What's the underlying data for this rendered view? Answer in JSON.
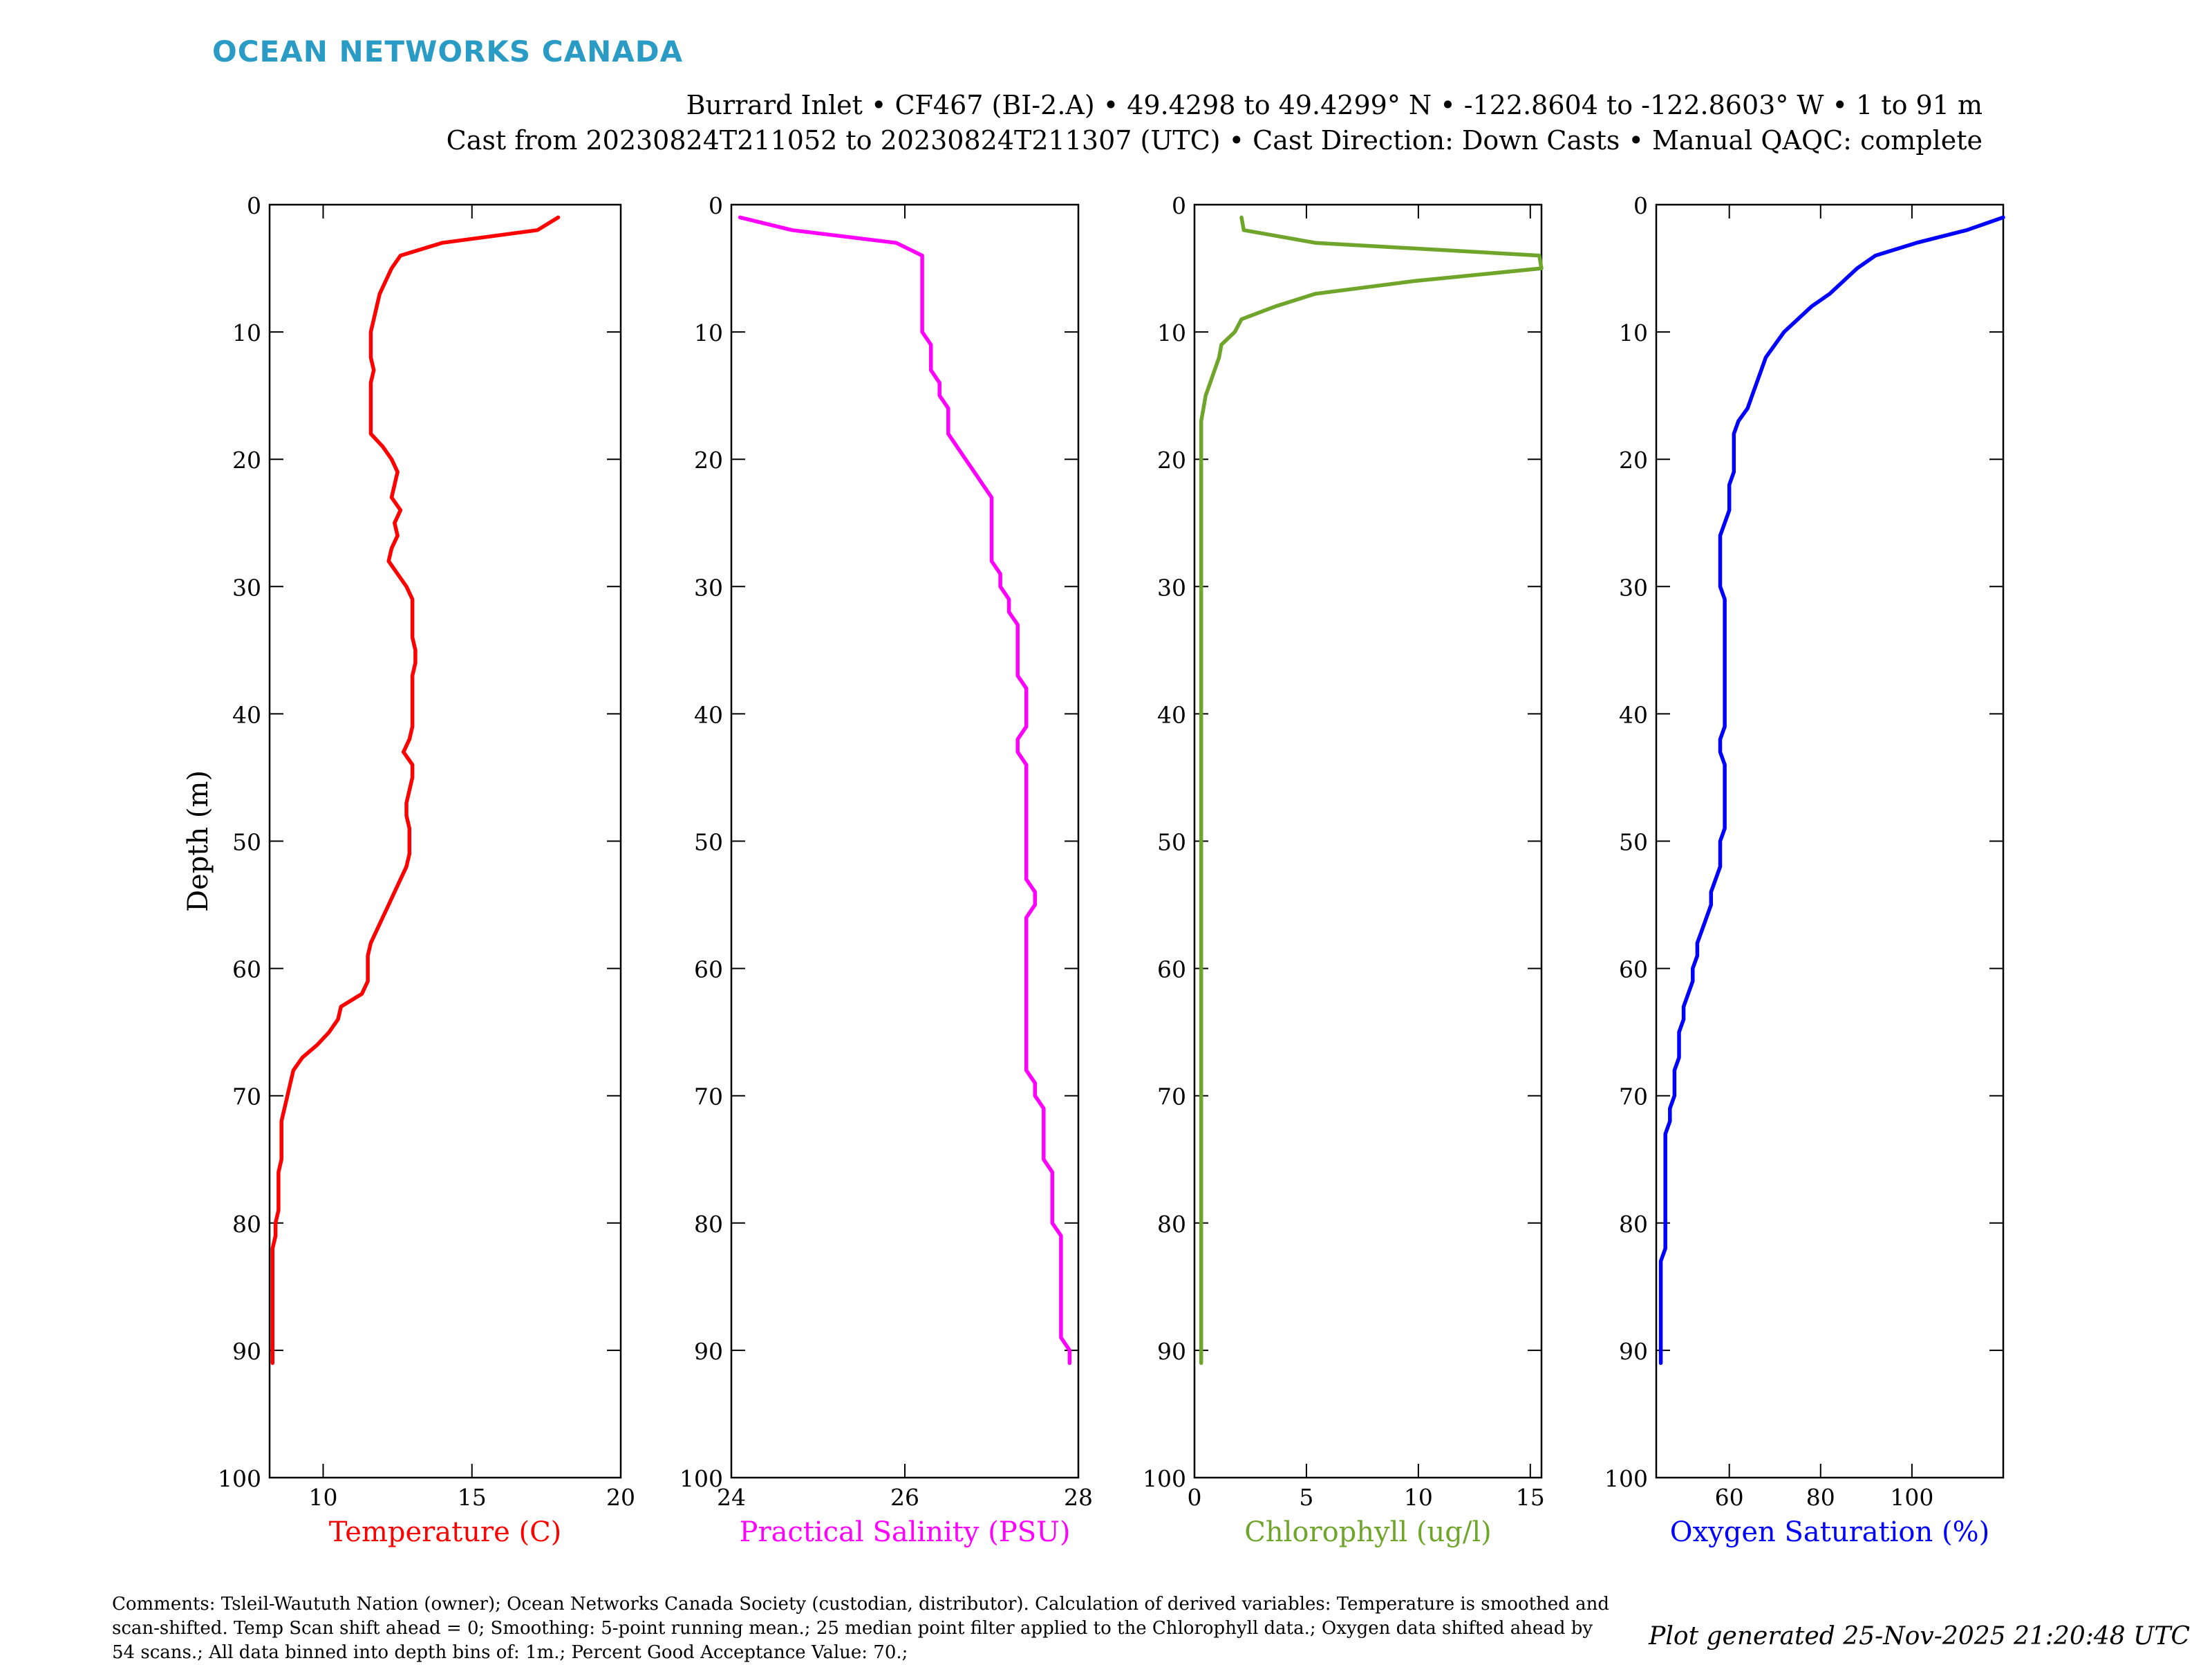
{
  "brand": "OCEAN NETWORKS CANADA",
  "title_line1": "Burrard Inlet • CF467 (BI-2.A) • 49.4298 to 49.4299° N • -122.8604 to -122.8603° W • 1 to 91 m",
  "title_line2": "Cast from 20230824T211052 to 20230824T211307 (UTC) • Cast Direction: Down Casts • Manual QAQC: complete",
  "comments": "Comments: Tsleil-Waututh Nation (owner); Ocean Networks Canada Society (custodian, distributor). Calculation of derived variables: Temperature is smoothed and scan-shifted. Temp Scan shift ahead = 0; Smoothing: 5-point running mean.; 25 median point filter applied to the Chlorophyll data.; Oxygen data shifted ahead by 54 scans.; All data binned into depth bins of: 1m.; Percent Good Acceptance Value: 70.;",
  "generated": "Plot generated 25-Nov-2025 21:20:48 UTC",
  "chart_data": [
    {
      "type": "line",
      "xlabel": "Temperature (C)",
      "ylabel": "Depth (m)",
      "color": "#ff0000",
      "xlim": [
        8.2,
        20
      ],
      "ylim": [
        0,
        100
      ],
      "y_reversed": true,
      "xticks": [
        10,
        15,
        20
      ],
      "yticks": [
        0,
        10,
        20,
        30,
        40,
        50,
        60,
        70,
        80,
        90,
        100
      ],
      "series": [
        {
          "x": [
            17.9,
            17.2,
            14.0,
            12.6,
            12.3,
            12.1,
            11.9,
            11.8,
            11.7,
            11.6,
            11.6,
            11.6,
            11.7,
            11.6,
            11.6,
            11.6,
            11.6,
            11.6,
            12.0,
            12.3,
            12.5,
            12.4,
            12.3,
            12.6,
            12.4,
            12.5,
            12.3,
            12.2,
            12.5,
            12.8,
            13.0,
            13.0,
            13.0,
            13.0,
            13.1,
            13.1,
            13.0,
            13.0,
            13.0,
            13.0,
            13.0,
            12.9,
            12.7,
            13.0,
            13.0,
            12.9,
            12.8,
            12.8,
            12.9,
            12.9,
            12.9,
            12.8,
            12.6,
            12.4,
            12.2,
            12.0,
            11.8,
            11.6,
            11.5,
            11.5,
            11.5,
            11.3,
            10.6,
            10.5,
            10.2,
            9.8,
            9.3,
            9.0,
            8.9,
            8.8,
            8.7,
            8.6,
            8.6,
            8.6,
            8.6,
            8.5,
            8.5,
            8.5,
            8.5,
            8.4,
            8.4,
            8.3,
            8.3,
            8.3,
            8.3,
            8.3,
            8.3,
            8.3,
            8.3,
            8.3,
            8.3
          ],
          "depth": [
            1,
            2,
            3,
            4,
            5,
            6,
            7,
            8,
            9,
            10,
            11,
            12,
            13,
            14,
            15,
            16,
            17,
            18,
            19,
            20,
            21,
            22,
            23,
            24,
            25,
            26,
            27,
            28,
            29,
            30,
            31,
            32,
            33,
            34,
            35,
            36,
            37,
            38,
            39,
            40,
            41,
            42,
            43,
            44,
            45,
            46,
            47,
            48,
            49,
            50,
            51,
            52,
            53,
            54,
            55,
            56,
            57,
            58,
            59,
            60,
            61,
            62,
            63,
            64,
            65,
            66,
            67,
            68,
            69,
            70,
            71,
            72,
            73,
            74,
            75,
            76,
            77,
            78,
            79,
            80,
            81,
            82,
            83,
            84,
            85,
            86,
            87,
            88,
            89,
            90,
            91
          ]
        }
      ]
    },
    {
      "type": "line",
      "xlabel": "Practical Salinity (PSU)",
      "ylabel": "",
      "color": "#ff00ff",
      "xlim": [
        24,
        28
      ],
      "ylim": [
        0,
        100
      ],
      "y_reversed": true,
      "xticks": [
        24,
        26,
        28
      ],
      "yticks": [
        0,
        10,
        20,
        30,
        40,
        50,
        60,
        70,
        80,
        90,
        100
      ],
      "series": [
        {
          "x": [
            24.1,
            24.7,
            25.9,
            26.2,
            26.2,
            26.2,
            26.2,
            26.2,
            26.2,
            26.2,
            26.3,
            26.3,
            26.3,
            26.4,
            26.4,
            26.5,
            26.5,
            26.5,
            26.6,
            26.7,
            26.8,
            26.9,
            27.0,
            27.0,
            27.0,
            27.0,
            27.0,
            27.0,
            27.1,
            27.1,
            27.2,
            27.2,
            27.3,
            27.3,
            27.3,
            27.3,
            27.3,
            27.4,
            27.4,
            27.4,
            27.4,
            27.3,
            27.3,
            27.4,
            27.4,
            27.4,
            27.4,
            27.4,
            27.4,
            27.4,
            27.4,
            27.4,
            27.4,
            27.5,
            27.5,
            27.4,
            27.4,
            27.4,
            27.4,
            27.4,
            27.4,
            27.4,
            27.4,
            27.4,
            27.4,
            27.4,
            27.4,
            27.4,
            27.5,
            27.5,
            27.6,
            27.6,
            27.6,
            27.6,
            27.6,
            27.7,
            27.7,
            27.7,
            27.7,
            27.7,
            27.8,
            27.8,
            27.8,
            27.8,
            27.8,
            27.8,
            27.8,
            27.8,
            27.8,
            27.9,
            27.9
          ],
          "depth": [
            1,
            2,
            3,
            4,
            5,
            6,
            7,
            8,
            9,
            10,
            11,
            12,
            13,
            14,
            15,
            16,
            17,
            18,
            19,
            20,
            21,
            22,
            23,
            24,
            25,
            26,
            27,
            28,
            29,
            30,
            31,
            32,
            33,
            34,
            35,
            36,
            37,
            38,
            39,
            40,
            41,
            42,
            43,
            44,
            45,
            46,
            47,
            48,
            49,
            50,
            51,
            52,
            53,
            54,
            55,
            56,
            57,
            58,
            59,
            60,
            61,
            62,
            63,
            64,
            65,
            66,
            67,
            68,
            69,
            70,
            71,
            72,
            73,
            74,
            75,
            76,
            77,
            78,
            79,
            80,
            81,
            82,
            83,
            84,
            85,
            86,
            87,
            88,
            89,
            90,
            91
          ]
        }
      ]
    },
    {
      "type": "line",
      "xlabel": "Chlorophyll (ug/l)",
      "ylabel": "",
      "color": "#6fa52a",
      "xlim": [
        0,
        15.5
      ],
      "ylim": [
        0,
        100
      ],
      "y_reversed": true,
      "xticks": [
        0,
        5,
        10,
        15
      ],
      "yticks": [
        0,
        10,
        20,
        30,
        40,
        50,
        60,
        70,
        80,
        90,
        100
      ],
      "series": [
        {
          "x": [
            2.1,
            2.2,
            5.4,
            15.4,
            15.5,
            9.8,
            5.4,
            3.6,
            2.1,
            1.8,
            1.2,
            1.1,
            0.9,
            0.7,
            0.5,
            0.4,
            0.3,
            0.3,
            0.3,
            0.3,
            0.3,
            0.3,
            0.3,
            0.3,
            0.3,
            0.3,
            0.3,
            0.3,
            0.3,
            0.3,
            0.3,
            0.3,
            0.3,
            0.3,
            0.3,
            0.3,
            0.3,
            0.3,
            0.3,
            0.3,
            0.3,
            0.3,
            0.3,
            0.3,
            0.3,
            0.3,
            0.3,
            0.3,
            0.3,
            0.3,
            0.3,
            0.3,
            0.3,
            0.3,
            0.3,
            0.3,
            0.3,
            0.3,
            0.3,
            0.3,
            0.3,
            0.3,
            0.3,
            0.3,
            0.3,
            0.3,
            0.3,
            0.3,
            0.3,
            0.3,
            0.3,
            0.3,
            0.3,
            0.3,
            0.3,
            0.3,
            0.3,
            0.3,
            0.3,
            0.3,
            0.3,
            0.3,
            0.3,
            0.3,
            0.3,
            0.3,
            0.3,
            0.3,
            0.3,
            0.3,
            0.3
          ],
          "depth": [
            1,
            2,
            3,
            4,
            5,
            6,
            7,
            8,
            9,
            10,
            11,
            12,
            13,
            14,
            15,
            16,
            17,
            18,
            19,
            20,
            21,
            22,
            23,
            24,
            25,
            26,
            27,
            28,
            29,
            30,
            31,
            32,
            33,
            34,
            35,
            36,
            37,
            38,
            39,
            40,
            41,
            42,
            43,
            44,
            45,
            46,
            47,
            48,
            49,
            50,
            51,
            52,
            53,
            54,
            55,
            56,
            57,
            58,
            59,
            60,
            61,
            62,
            63,
            64,
            65,
            66,
            67,
            68,
            69,
            70,
            71,
            72,
            73,
            74,
            75,
            76,
            77,
            78,
            79,
            80,
            81,
            82,
            83,
            84,
            85,
            86,
            87,
            88,
            89,
            90,
            91
          ]
        }
      ]
    },
    {
      "type": "line",
      "xlabel": "Oxygen Saturation (%)",
      "ylabel": "",
      "color": "#0000ff",
      "xlim": [
        44,
        120
      ],
      "ylim": [
        0,
        100
      ],
      "y_reversed": true,
      "xticks": [
        60,
        80,
        100
      ],
      "yticks": [
        0,
        10,
        20,
        30,
        40,
        50,
        60,
        70,
        80,
        90,
        100
      ],
      "series": [
        {
          "x": [
            120,
            112,
            101,
            92,
            88,
            85,
            82,
            78,
            75,
            72,
            70,
            68,
            67,
            66,
            65,
            64,
            62,
            61,
            61,
            61,
            61,
            60,
            60,
            60,
            59,
            58,
            58,
            58,
            58,
            58,
            59,
            59,
            59,
            59,
            59,
            59,
            59,
            59,
            59,
            59,
            59,
            58,
            58,
            59,
            59,
            59,
            59,
            59,
            59,
            58,
            58,
            58,
            57,
            56,
            56,
            55,
            54,
            53,
            53,
            52,
            52,
            51,
            50,
            50,
            49,
            49,
            49,
            48,
            48,
            48,
            47,
            47,
            46,
            46,
            46,
            46,
            46,
            46,
            46,
            46,
            46,
            46,
            45,
            45,
            45,
            45,
            45,
            45,
            45,
            45,
            45
          ],
          "depth": [
            1,
            2,
            3,
            4,
            5,
            6,
            7,
            8,
            9,
            10,
            11,
            12,
            13,
            14,
            15,
            16,
            17,
            18,
            19,
            20,
            21,
            22,
            23,
            24,
            25,
            26,
            27,
            28,
            29,
            30,
            31,
            32,
            33,
            34,
            35,
            36,
            37,
            38,
            39,
            40,
            41,
            42,
            43,
            44,
            45,
            46,
            47,
            48,
            49,
            50,
            51,
            52,
            53,
            54,
            55,
            56,
            57,
            58,
            59,
            60,
            61,
            62,
            63,
            64,
            65,
            66,
            67,
            68,
            69,
            70,
            71,
            72,
            73,
            74,
            75,
            76,
            77,
            78,
            79,
            80,
            81,
            82,
            83,
            84,
            85,
            86,
            87,
            88,
            89,
            90,
            91
          ]
        }
      ]
    }
  ]
}
